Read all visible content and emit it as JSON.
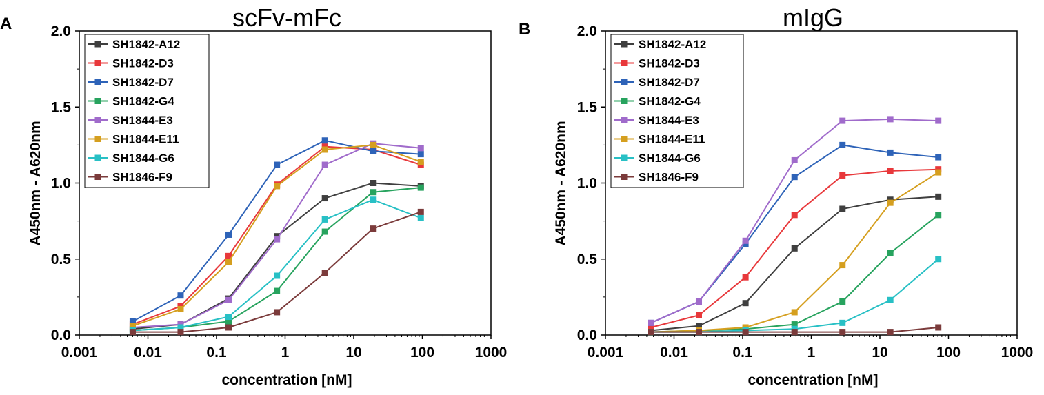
{
  "chart_data": [
    {
      "type": "line",
      "panel": "A",
      "title": "scFv-mFc",
      "xlabel": "concentration [nM]",
      "ylabel": "A450nm - A620nm",
      "xscale": "log",
      "xlim": [
        0.001,
        1000
      ],
      "ylim": [
        0,
        2.0
      ],
      "x_ticks": [
        "0.001",
        "0.01",
        "0.1",
        "1",
        "10",
        "100",
        "1000"
      ],
      "y_ticks": [
        "0.0",
        "0.5",
        "1.0",
        "1.5",
        "2.0"
      ],
      "legend_position": "top-left",
      "x": [
        0.006,
        0.03,
        0.15,
        0.76,
        3.8,
        19,
        95
      ],
      "series": [
        {
          "name": "SH1842-A12",
          "color": "#3f3f3f",
          "values": [
            0.04,
            0.07,
            0.24,
            0.65,
            0.9,
            1.0,
            0.98
          ]
        },
        {
          "name": "SH1842-D3",
          "color": "#e8383b",
          "values": [
            0.07,
            0.19,
            0.52,
            0.99,
            1.24,
            1.22,
            1.12
          ]
        },
        {
          "name": "SH1842-D7",
          "color": "#2e63b8",
          "values": [
            0.09,
            0.26,
            0.66,
            1.12,
            1.28,
            1.21,
            1.19
          ]
        },
        {
          "name": "SH1842-G4",
          "color": "#27a35e",
          "values": [
            0.03,
            0.05,
            0.09,
            0.29,
            0.68,
            0.94,
            0.97
          ]
        },
        {
          "name": "SH1844-E3",
          "color": "#a06bcb",
          "values": [
            0.05,
            0.07,
            0.23,
            0.63,
            1.12,
            1.26,
            1.23
          ]
        },
        {
          "name": "SH1844-E11",
          "color": "#d59f1f",
          "values": [
            0.06,
            0.17,
            0.48,
            0.98,
            1.22,
            1.25,
            1.14
          ]
        },
        {
          "name": "SH1844-G6",
          "color": "#28c0c5",
          "values": [
            0.03,
            0.05,
            0.12,
            0.39,
            0.76,
            0.89,
            0.77
          ]
        },
        {
          "name": "SH1846-F9",
          "color": "#7b3b3b",
          "values": [
            0.02,
            0.02,
            0.05,
            0.15,
            0.41,
            0.7,
            0.81
          ]
        }
      ]
    },
    {
      "type": "line",
      "panel": "B",
      "title": "mIgG",
      "xlabel": "concentration [nM]",
      "ylabel": "A450nm - A620nm",
      "xscale": "log",
      "xlim": [
        0.001,
        1000
      ],
      "ylim": [
        0,
        2.0
      ],
      "x_ticks": [
        "0.001",
        "0.01",
        "0.1",
        "1",
        "10",
        "100",
        "1000"
      ],
      "y_ticks": [
        "0.0",
        "0.5",
        "1.0",
        "1.5",
        "2.0"
      ],
      "legend_position": "top-left",
      "x": [
        0.0046,
        0.023,
        0.11,
        0.57,
        2.85,
        14.2,
        71
      ],
      "series": [
        {
          "name": "SH1842-A12",
          "color": "#3f3f3f",
          "values": [
            0.03,
            0.06,
            0.21,
            0.57,
            0.83,
            0.89,
            0.91
          ]
        },
        {
          "name": "SH1842-D3",
          "color": "#e8383b",
          "values": [
            0.05,
            0.13,
            0.38,
            0.79,
            1.05,
            1.08,
            1.09
          ]
        },
        {
          "name": "SH1842-D7",
          "color": "#2e63b8",
          "values": [
            0.08,
            0.22,
            0.6,
            1.04,
            1.25,
            1.2,
            1.17
          ]
        },
        {
          "name": "SH1842-G4",
          "color": "#27a35e",
          "values": [
            0.02,
            0.03,
            0.04,
            0.07,
            0.22,
            0.54,
            0.79
          ]
        },
        {
          "name": "SH1844-E3",
          "color": "#a06bcb",
          "values": [
            0.08,
            0.22,
            0.62,
            1.15,
            1.41,
            1.42,
            1.41
          ]
        },
        {
          "name": "SH1844-E11",
          "color": "#d59f1f",
          "values": [
            0.02,
            0.03,
            0.05,
            0.15,
            0.46,
            0.87,
            1.07
          ]
        },
        {
          "name": "SH1844-G6",
          "color": "#28c0c5",
          "values": [
            0.02,
            0.02,
            0.03,
            0.04,
            0.08,
            0.23,
            0.5
          ]
        },
        {
          "name": "SH1846-F9",
          "color": "#7b3b3b",
          "values": [
            0.02,
            0.02,
            0.02,
            0.02,
            0.02,
            0.02,
            0.05
          ]
        }
      ]
    }
  ]
}
